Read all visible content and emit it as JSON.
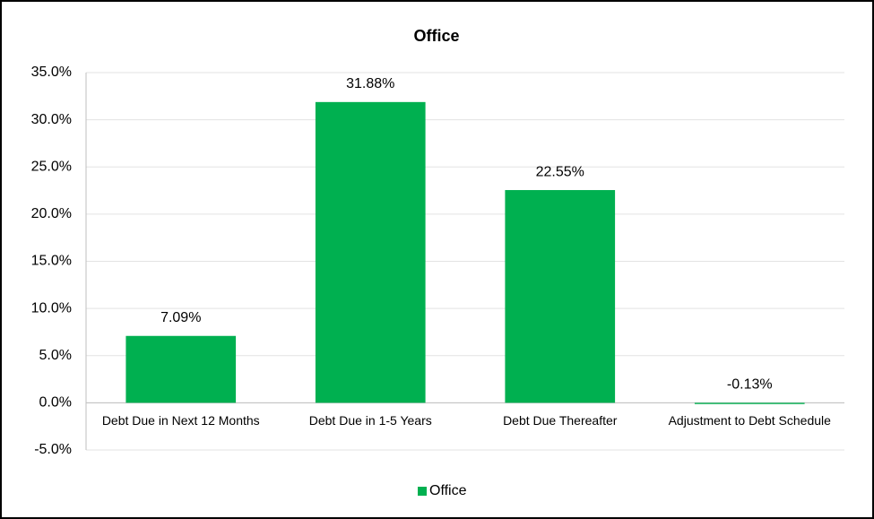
{
  "chart_data": {
    "type": "bar",
    "title": "Office",
    "categories": [
      "Debt Due in Next 12 Months",
      "Debt Due in 1-5 Years",
      "Debt Due Thereafter",
      "Adjustment to Debt Schedule"
    ],
    "series": [
      {
        "name": "Office",
        "color": "#00b050",
        "values": [
          7.09,
          31.88,
          22.55,
          -0.13
        ],
        "value_labels": [
          "7.09%",
          "31.88%",
          "22.55%",
          "-0.13%"
        ]
      }
    ],
    "ylim": [
      -5,
      35
    ],
    "yticks": [
      {
        "value": -5,
        "label": "-5.0%"
      },
      {
        "value": 0,
        "label": "0.0%"
      },
      {
        "value": 5,
        "label": "5.0%"
      },
      {
        "value": 10,
        "label": "10.0%"
      },
      {
        "value": 15,
        "label": "15.0%"
      },
      {
        "value": 20,
        "label": "20.0%"
      },
      {
        "value": 25,
        "label": "25.0%"
      },
      {
        "value": 30,
        "label": "30.0%"
      },
      {
        "value": 35,
        "label": "35.0%"
      }
    ],
    "grid": true,
    "legend": "bottom"
  }
}
